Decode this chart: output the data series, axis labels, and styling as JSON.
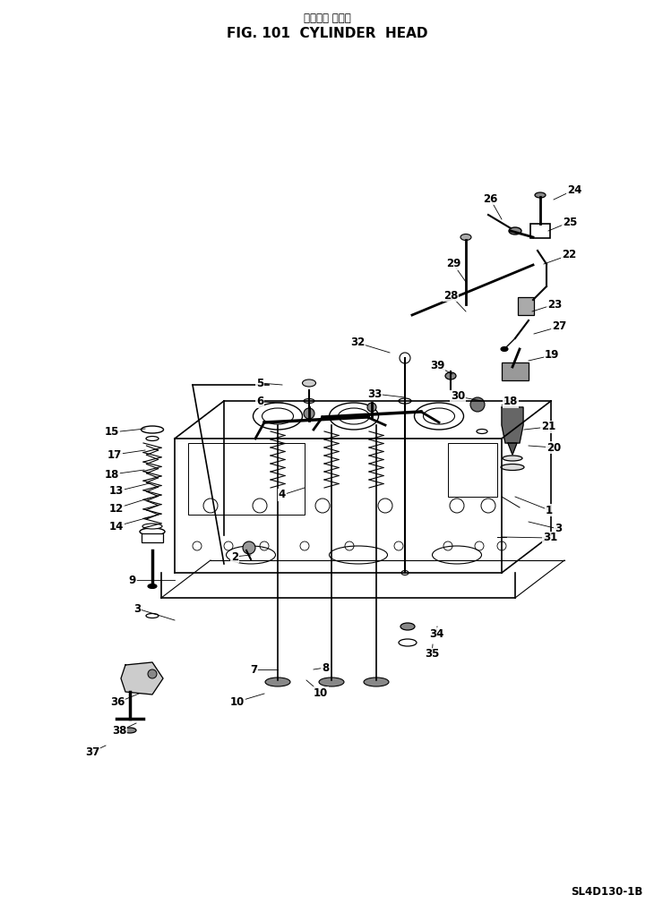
{
  "title_japanese": "シリンダ ヘッド",
  "title_english": "FIG. 101  CYLINDER  HEAD",
  "model": "SL4D130-1B",
  "bg": "#ffffff",
  "fc": "#000000",
  "labels": [
    [
      "1",
      613,
      570
    ],
    [
      "2",
      262,
      622
    ],
    [
      "3",
      623,
      591
    ],
    [
      "3",
      153,
      680
    ],
    [
      "4",
      315,
      553
    ],
    [
      "5",
      290,
      428
    ],
    [
      "6",
      290,
      449
    ],
    [
      "7",
      283,
      748
    ],
    [
      "8",
      363,
      746
    ],
    [
      "9",
      148,
      648
    ],
    [
      "10",
      265,
      784
    ],
    [
      "10",
      358,
      774
    ],
    [
      "12",
      130,
      568
    ],
    [
      "13",
      130,
      549
    ],
    [
      "14",
      130,
      588
    ],
    [
      "15",
      125,
      483
    ],
    [
      "17",
      128,
      508
    ],
    [
      "18",
      125,
      530
    ],
    [
      "18",
      570,
      449
    ],
    [
      "19",
      616,
      397
    ],
    [
      "20",
      618,
      500
    ],
    [
      "21",
      612,
      477
    ],
    [
      "22",
      635,
      285
    ],
    [
      "23",
      619,
      340
    ],
    [
      "24",
      641,
      212
    ],
    [
      "25",
      636,
      248
    ],
    [
      "26",
      547,
      222
    ],
    [
      "27",
      624,
      365
    ],
    [
      "28",
      503,
      330
    ],
    [
      "29",
      506,
      295
    ],
    [
      "30",
      511,
      443
    ],
    [
      "31",
      614,
      601
    ],
    [
      "32",
      399,
      383
    ],
    [
      "33",
      418,
      440
    ],
    [
      "34",
      487,
      708
    ],
    [
      "35",
      482,
      731
    ],
    [
      "36",
      131,
      785
    ],
    [
      "37",
      103,
      840
    ],
    [
      "38",
      133,
      817
    ],
    [
      "39",
      488,
      409
    ]
  ],
  "leader_lines": [
    [
      "1",
      613,
      570,
      575,
      555
    ],
    [
      "2",
      262,
      622,
      280,
      620
    ],
    [
      "3",
      623,
      591,
      590,
      583
    ],
    [
      "3",
      153,
      680,
      195,
      693
    ],
    [
      "4",
      315,
      553,
      340,
      545
    ],
    [
      "5",
      290,
      428,
      315,
      430
    ],
    [
      "6",
      290,
      449,
      316,
      450
    ],
    [
      "7",
      283,
      748,
      310,
      748
    ],
    [
      "8",
      363,
      746,
      350,
      748
    ],
    [
      "9",
      148,
      648,
      195,
      648
    ],
    [
      "10",
      265,
      784,
      295,
      775
    ],
    [
      "10",
      358,
      774,
      342,
      760
    ],
    [
      "12",
      130,
      568,
      168,
      556
    ],
    [
      "13",
      130,
      549,
      167,
      540
    ],
    [
      "14",
      130,
      588,
      166,
      578
    ],
    [
      "15",
      125,
      483,
      162,
      479
    ],
    [
      "17",
      128,
      508,
      162,
      503
    ],
    [
      "18",
      125,
      530,
      161,
      525
    ],
    [
      "18",
      570,
      449,
      560,
      453
    ],
    [
      "19",
      616,
      397,
      590,
      403
    ],
    [
      "20",
      618,
      500,
      590,
      498
    ],
    [
      "21",
      612,
      477,
      585,
      480
    ],
    [
      "22",
      635,
      285,
      607,
      295
    ],
    [
      "23",
      619,
      340,
      594,
      348
    ],
    [
      "24",
      641,
      212,
      618,
      223
    ],
    [
      "25",
      636,
      248,
      612,
      258
    ],
    [
      "26",
      547,
      222,
      560,
      245
    ],
    [
      "27",
      624,
      365,
      596,
      373
    ],
    [
      "28",
      503,
      330,
      520,
      348
    ],
    [
      "29",
      506,
      295,
      520,
      315
    ],
    [
      "30",
      511,
      443,
      538,
      448
    ],
    [
      "31",
      614,
      601,
      560,
      600
    ],
    [
      "32",
      399,
      383,
      435,
      394
    ],
    [
      "33",
      418,
      440,
      452,
      444
    ],
    [
      "34",
      487,
      708,
      488,
      700
    ],
    [
      "35",
      482,
      731,
      483,
      720
    ],
    [
      "36",
      131,
      785,
      155,
      775
    ],
    [
      "37",
      103,
      840,
      118,
      833
    ],
    [
      "38",
      133,
      817,
      152,
      808
    ],
    [
      "39",
      488,
      409,
      505,
      418
    ]
  ]
}
